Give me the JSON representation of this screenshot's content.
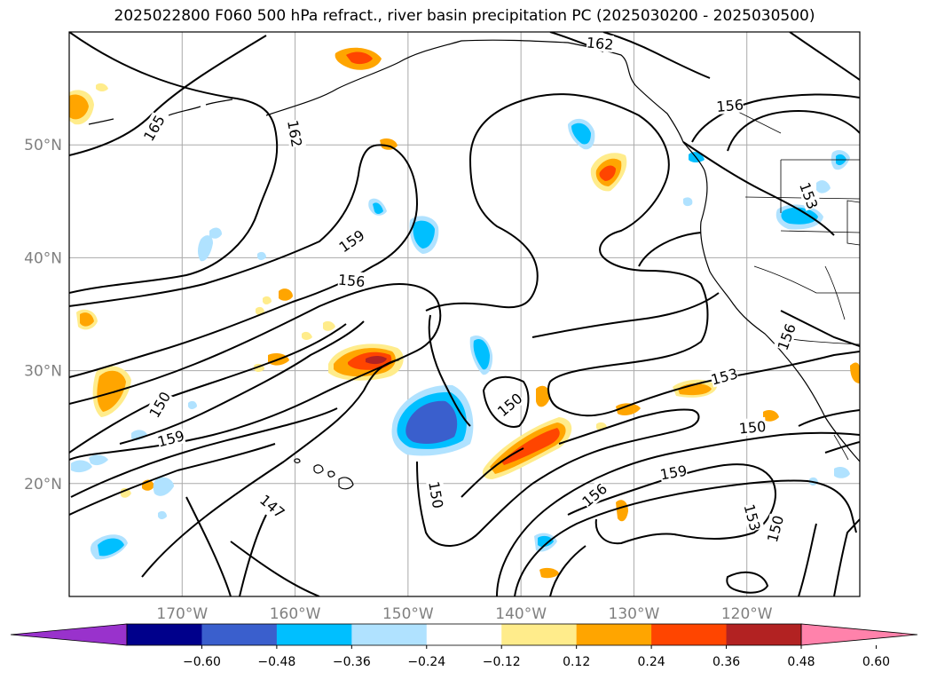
{
  "title": "2025022800 F060 500 hPa refract., river basin precipitation PC (2025030200 - 2025030500)",
  "map": {
    "lat_labels": [
      {
        "lat": 50,
        "text": "50°N"
      },
      {
        "lat": 40,
        "text": "40°N"
      },
      {
        "lat": 30,
        "text": "30°N"
      },
      {
        "lat": 20,
        "text": "20°N"
      }
    ],
    "lon_labels": [
      {
        "lon": -170,
        "text": "170°W"
      },
      {
        "lon": -160,
        "text": "160°W"
      },
      {
        "lon": -150,
        "text": "150°W"
      },
      {
        "lon": -140,
        "text": "140°W"
      },
      {
        "lon": -130,
        "text": "130°W"
      },
      {
        "lon": -120,
        "text": "120°W"
      }
    ],
    "contour_labels": [
      {
        "text": "165",
        "lat": 51.5,
        "lon": -172.5,
        "rotate": -60
      },
      {
        "text": "162",
        "lat": 51.0,
        "lon": -160.0,
        "rotate": 80
      },
      {
        "text": "162",
        "lat": 59.0,
        "lon": -133.0,
        "rotate": 5
      },
      {
        "text": "156",
        "lat": 53.5,
        "lon": -121.5,
        "rotate": -5
      },
      {
        "text": "153",
        "lat": 45.5,
        "lon": -114.5,
        "rotate": 70
      },
      {
        "text": "159",
        "lat": 41.5,
        "lon": -155.0,
        "rotate": -35
      },
      {
        "text": "156",
        "lat": 38.0,
        "lon": -155.0,
        "rotate": 5
      },
      {
        "text": "156",
        "lat": 33.0,
        "lon": -116.5,
        "rotate": -70
      },
      {
        "text": "153",
        "lat": 29.5,
        "lon": -122.0,
        "rotate": -15
      },
      {
        "text": "150",
        "lat": 27.0,
        "lon": -172.0,
        "rotate": -60
      },
      {
        "text": "159",
        "lat": 24.0,
        "lon": -171.0,
        "rotate": -15
      },
      {
        "text": "150",
        "lat": 27.0,
        "lon": -141.0,
        "rotate": -40
      },
      {
        "text": "150",
        "lat": 25.0,
        "lon": -119.5,
        "rotate": -5
      },
      {
        "text": "150",
        "lat": 19.0,
        "lon": -147.5,
        "rotate": 80
      },
      {
        "text": "147",
        "lat": 18.0,
        "lon": -162.0,
        "rotate": 40
      },
      {
        "text": "156",
        "lat": 19.0,
        "lon": -133.5,
        "rotate": -40
      },
      {
        "text": "159",
        "lat": 21.0,
        "lon": -126.5,
        "rotate": -10
      },
      {
        "text": "153",
        "lat": 17.0,
        "lon": -119.5,
        "rotate": 75
      },
      {
        "text": "150",
        "lat": 16.0,
        "lon": -117.5,
        "rotate": -75
      }
    ]
  },
  "colorbar": {
    "colors": [
      "#9932cc",
      "#00008b",
      "#3a5fcd",
      "#00bfff",
      "#b0e2ff",
      "#ffffff",
      "#ffec8b",
      "#ffa500",
      "#ff4500",
      "#b22222",
      "#ff82ab"
    ],
    "ticks": [
      "−0.60",
      "−0.48",
      "−0.36",
      "−0.24",
      "−0.12",
      "0.12",
      "0.24",
      "0.36",
      "0.48",
      "0.60"
    ]
  }
}
